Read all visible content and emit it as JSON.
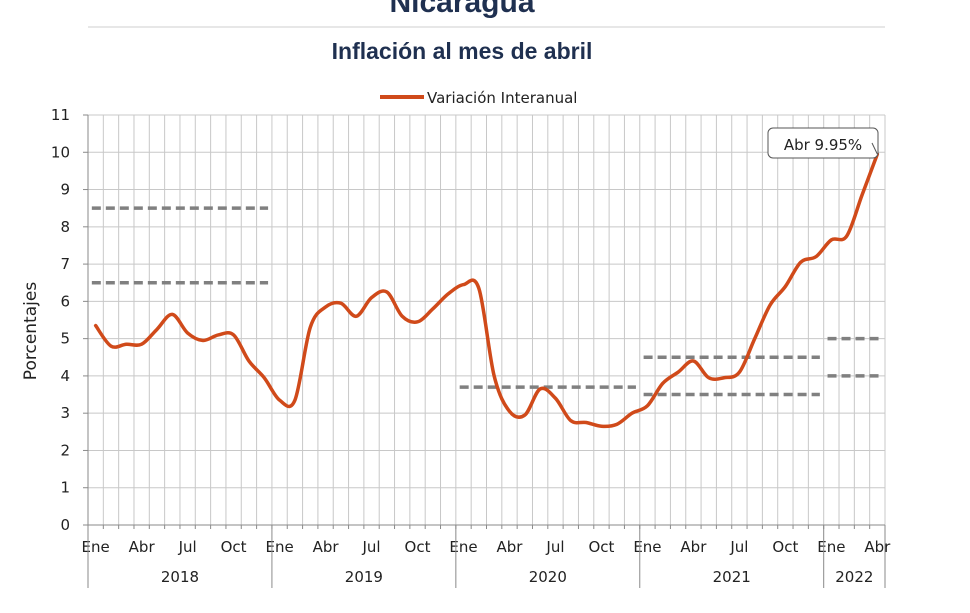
{
  "header": {
    "country": "Nicaragua",
    "subtitle": "Inflación al mes de abril"
  },
  "chart_data": {
    "type": "line",
    "title": "Inflación al mes de abril",
    "ylabel": "Porcentajes",
    "xlabel": "",
    "ylim": [
      0,
      11
    ],
    "y_ticks": [
      "0",
      "1",
      "2",
      "3",
      "4",
      "5",
      "6",
      "7",
      "8",
      "9",
      "10",
      "11"
    ],
    "grid": true,
    "legend_position": "top-center",
    "month_tick_labels": [
      "Ene",
      "Abr",
      "Jul",
      "Oct",
      "Ene",
      "Abr",
      "Jul",
      "Oct",
      "Ene",
      "Abr",
      "Jul",
      "Oct",
      "Ene",
      "Abr",
      "Jul",
      "Oct",
      "Ene",
      "Abr"
    ],
    "years": [
      "2018",
      "2019",
      "2020",
      "2021",
      "2022"
    ],
    "series": [
      {
        "name": "Variación Interanual",
        "color": "#d04a1a",
        "x": [
          "2018-01",
          "2018-02",
          "2018-03",
          "2018-04",
          "2018-05",
          "2018-06",
          "2018-07",
          "2018-08",
          "2018-09",
          "2018-10",
          "2018-11",
          "2018-12",
          "2019-01",
          "2019-02",
          "2019-03",
          "2019-04",
          "2019-05",
          "2019-06",
          "2019-07",
          "2019-08",
          "2019-09",
          "2019-10",
          "2019-11",
          "2019-12",
          "2020-01",
          "2020-02",
          "2020-03",
          "2020-04",
          "2020-05",
          "2020-06",
          "2020-07",
          "2020-08",
          "2020-09",
          "2020-10",
          "2020-11",
          "2020-12",
          "2021-01",
          "2021-02",
          "2021-03",
          "2021-04",
          "2021-05",
          "2021-06",
          "2021-07",
          "2021-08",
          "2021-09",
          "2021-10",
          "2021-11",
          "2021-12",
          "2022-01",
          "2022-02",
          "2022-03",
          "2022-04"
        ],
        "values": [
          5.35,
          4.8,
          4.85,
          4.85,
          5.25,
          5.65,
          5.15,
          4.95,
          5.1,
          5.1,
          4.4,
          3.95,
          3.35,
          3.35,
          5.3,
          5.85,
          5.95,
          5.6,
          6.1,
          6.25,
          5.6,
          5.45,
          5.8,
          6.2,
          6.45,
          6.35,
          4.0,
          3.05,
          2.95,
          3.65,
          3.4,
          2.8,
          2.75,
          2.65,
          2.7,
          3.0,
          3.2,
          3.8,
          4.1,
          4.4,
          3.95,
          3.95,
          4.1,
          5.0,
          5.9,
          6.4,
          7.05,
          7.2,
          7.65,
          7.75,
          8.85,
          9.95
        ]
      }
    ],
    "reference_bands": [
      {
        "start": "2018-01",
        "end": "2018-12",
        "lower": 6.5,
        "upper": 8.5,
        "color": "#808080"
      },
      {
        "start": "2020-01",
        "end": "2020-12",
        "lower": 3.7,
        "upper": 3.7,
        "color": "#808080"
      },
      {
        "start": "2021-01",
        "end": "2021-12",
        "lower": 3.5,
        "upper": 4.5,
        "color": "#808080"
      },
      {
        "start": "2022-01",
        "end": "2022-04",
        "lower": 4.0,
        "upper": 5.0,
        "color": "#808080"
      }
    ],
    "annotation": {
      "text": "Abr 9.95%",
      "x": "2022-04",
      "y": 9.95
    }
  }
}
